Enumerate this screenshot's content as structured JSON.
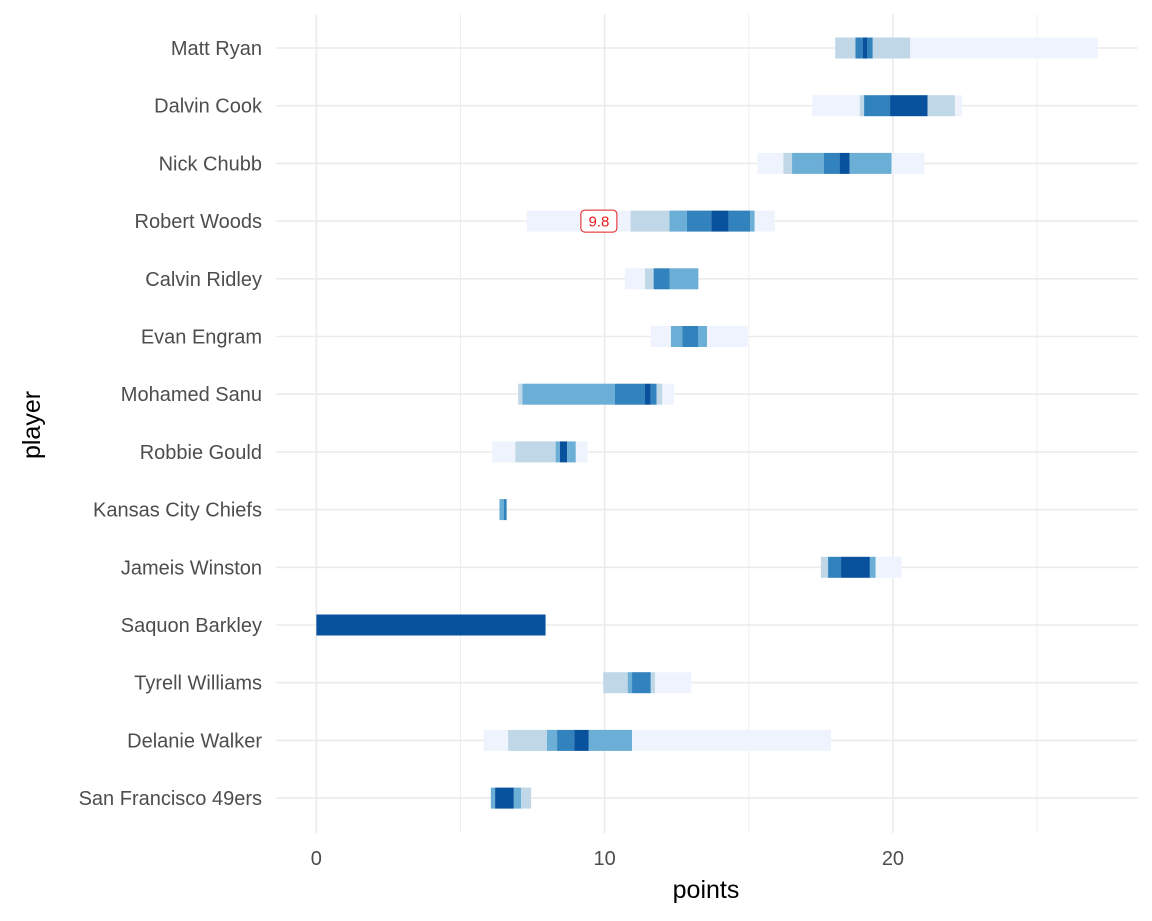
{
  "chart_data": {
    "type": "bar",
    "orientation": "horizontal",
    "title": "",
    "xlabel": "points",
    "ylabel": "player",
    "xlim": [
      -1.4,
      28.5
    ],
    "xticks": [
      0,
      10,
      20
    ],
    "grid": true,
    "colors": {
      "c1": "#eef3fd",
      "c2": "#c0d7e7",
      "c3": "#6baed6",
      "c4": "#3182bd",
      "c5": "#08519c",
      "grid": "#ebebeb",
      "annotation": "#e41a1c"
    },
    "annotation": {
      "player": "Robert Woods",
      "x": 9.8,
      "text": "9.8"
    },
    "players": [
      {
        "name": "Matt Ryan",
        "segments": [
          [
            18.0,
            18.7,
            "c2"
          ],
          [
            18.7,
            18.95,
            "c4"
          ],
          [
            18.95,
            19.1,
            "c5"
          ],
          [
            19.1,
            19.3,
            "c4"
          ],
          [
            19.3,
            20.6,
            "c2"
          ],
          [
            20.6,
            27.1,
            "c1"
          ]
        ]
      },
      {
        "name": "Dalvin Cook",
        "segments": [
          [
            17.2,
            18.85,
            "c1"
          ],
          [
            18.85,
            19.0,
            "c2"
          ],
          [
            19.0,
            19.9,
            "c4"
          ],
          [
            19.9,
            21.2,
            "c5"
          ],
          [
            21.2,
            22.15,
            "c2"
          ],
          [
            22.15,
            22.4,
            "c1"
          ]
        ]
      },
      {
        "name": "Nick Chubb",
        "segments": [
          [
            15.3,
            16.2,
            "c1"
          ],
          [
            16.2,
            16.5,
            "c2"
          ],
          [
            16.5,
            17.6,
            "c3"
          ],
          [
            17.6,
            18.15,
            "c4"
          ],
          [
            18.15,
            18.5,
            "c5"
          ],
          [
            18.5,
            19.95,
            "c3"
          ],
          [
            19.95,
            21.1,
            "c1"
          ]
        ]
      },
      {
        "name": "Robert Woods",
        "segments": [
          [
            7.3,
            10.9,
            "c1"
          ],
          [
            10.9,
            12.25,
            "c2"
          ],
          [
            12.25,
            12.85,
            "c3"
          ],
          [
            12.85,
            13.7,
            "c4"
          ],
          [
            13.7,
            14.3,
            "c5"
          ],
          [
            14.3,
            15.05,
            "c4"
          ],
          [
            15.05,
            15.2,
            "c3"
          ],
          [
            15.2,
            15.9,
            "c1"
          ]
        ]
      },
      {
        "name": "Calvin Ridley",
        "segments": [
          [
            10.7,
            11.4,
            "c1"
          ],
          [
            11.4,
            11.7,
            "c2"
          ],
          [
            11.7,
            12.25,
            "c4"
          ],
          [
            12.25,
            13.25,
            "c3"
          ]
        ]
      },
      {
        "name": "Evan Engram",
        "segments": [
          [
            11.6,
            12.3,
            "c1"
          ],
          [
            12.3,
            12.7,
            "c3"
          ],
          [
            12.7,
            13.25,
            "c4"
          ],
          [
            13.25,
            13.55,
            "c3"
          ],
          [
            13.55,
            14.95,
            "c1"
          ]
        ]
      },
      {
        "name": "Mohamed Sanu",
        "segments": [
          [
            7.0,
            7.15,
            "c2"
          ],
          [
            7.15,
            10.35,
            "c3"
          ],
          [
            10.35,
            11.4,
            "c4"
          ],
          [
            11.4,
            11.6,
            "c5"
          ],
          [
            11.6,
            11.8,
            "c4"
          ],
          [
            11.8,
            12.0,
            "c2"
          ],
          [
            12.0,
            12.4,
            "c1"
          ]
        ]
      },
      {
        "name": "Robbie Gould",
        "segments": [
          [
            6.1,
            6.9,
            "c1"
          ],
          [
            6.9,
            8.3,
            "c2"
          ],
          [
            8.3,
            8.45,
            "c3"
          ],
          [
            8.45,
            8.7,
            "c5"
          ],
          [
            8.7,
            9.0,
            "c3"
          ],
          [
            9.0,
            9.4,
            "c1"
          ]
        ]
      },
      {
        "name": "Kansas City Chiefs",
        "segments": [
          [
            6.35,
            6.5,
            "c3"
          ],
          [
            6.5,
            6.6,
            "c4"
          ]
        ]
      },
      {
        "name": "Jameis Winston",
        "segments": [
          [
            17.5,
            17.75,
            "c2"
          ],
          [
            17.75,
            18.2,
            "c4"
          ],
          [
            18.2,
            19.2,
            "c5"
          ],
          [
            19.2,
            19.4,
            "c3"
          ],
          [
            19.4,
            20.3,
            "c1"
          ]
        ]
      },
      {
        "name": "Saquon Barkley",
        "segments": [
          [
            0.0,
            7.95,
            "c5"
          ]
        ]
      },
      {
        "name": "Tyrell Williams",
        "segments": [
          [
            9.95,
            10.8,
            "c2"
          ],
          [
            10.8,
            10.95,
            "c3"
          ],
          [
            10.95,
            11.6,
            "c4"
          ],
          [
            11.6,
            11.75,
            "c2"
          ],
          [
            11.75,
            13.0,
            "c1"
          ]
        ]
      },
      {
        "name": "Delanie Walker",
        "segments": [
          [
            5.8,
            6.65,
            "c1"
          ],
          [
            6.65,
            8.0,
            "c2"
          ],
          [
            8.0,
            8.35,
            "c3"
          ],
          [
            8.35,
            8.95,
            "c4"
          ],
          [
            8.95,
            9.45,
            "c5"
          ],
          [
            9.45,
            10.95,
            "c3"
          ],
          [
            10.95,
            17.85,
            "c1"
          ]
        ]
      },
      {
        "name": "San Francisco 49ers",
        "segments": [
          [
            6.05,
            6.2,
            "c3"
          ],
          [
            6.2,
            6.85,
            "c5"
          ],
          [
            6.85,
            7.1,
            "c3"
          ],
          [
            7.1,
            7.45,
            "c2"
          ]
        ]
      }
    ]
  }
}
